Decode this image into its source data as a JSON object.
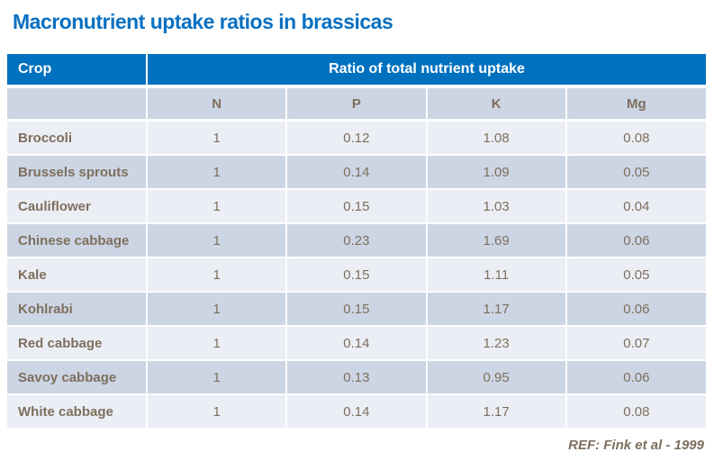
{
  "title": "Macronutrient uptake ratios in brassicas",
  "table": {
    "crop_header": "Crop",
    "span_header": "Ratio of total nutrient uptake",
    "columns": [
      "N",
      "P",
      "K",
      "Mg"
    ],
    "rows": [
      {
        "crop": "Broccoli",
        "values": [
          "1",
          "0.12",
          "1.08",
          "0.08"
        ]
      },
      {
        "crop": "Brussels sprouts",
        "values": [
          "1",
          "0.14",
          "1.09",
          "0.05"
        ]
      },
      {
        "crop": "Cauliflower",
        "values": [
          "1",
          "0.15",
          "1.03",
          "0.04"
        ]
      },
      {
        "crop": "Chinese cabbage",
        "values": [
          "1",
          "0.23",
          "1.69",
          "0.06"
        ]
      },
      {
        "crop": "Kale",
        "values": [
          "1",
          "0.15",
          "1.11",
          "0.05"
        ]
      },
      {
        "crop": "Kohlrabi",
        "values": [
          "1",
          "0.15",
          "1.17",
          "0.06"
        ]
      },
      {
        "crop": "Red cabbage",
        "values": [
          "1",
          "0.14",
          "1.23",
          "0.07"
        ]
      },
      {
        "crop": "Savoy cabbage",
        "values": [
          "1",
          "0.13",
          "0.95",
          "0.06"
        ]
      },
      {
        "crop": "White cabbage",
        "values": [
          "1",
          "0.14",
          "1.17",
          "0.08"
        ]
      }
    ]
  },
  "footer": {
    "reference": "REF: Fink et al - 1999"
  },
  "colors": {
    "header_bg": "#0071bf",
    "header_text": "#ffffff",
    "band_dark": "#ccd5e4",
    "band_light": "#ebeef5",
    "title_text": "#0a70c0",
    "body_text": "#7e6f5d"
  },
  "chart_data": {
    "type": "table",
    "title": "Macronutrient uptake ratios in brassicas",
    "columns": [
      "Crop",
      "N",
      "P",
      "K",
      "Mg"
    ],
    "rows": [
      [
        "Broccoli",
        1,
        0.12,
        1.08,
        0.08
      ],
      [
        "Brussels sprouts",
        1,
        0.14,
        1.09,
        0.05
      ],
      [
        "Cauliflower",
        1,
        0.15,
        1.03,
        0.04
      ],
      [
        "Chinese cabbage",
        1,
        0.23,
        1.69,
        0.06
      ],
      [
        "Kale",
        1,
        0.15,
        1.11,
        0.05
      ],
      [
        "Kohlrabi",
        1,
        0.15,
        1.17,
        0.06
      ],
      [
        "Red cabbage",
        1,
        0.14,
        1.23,
        0.07
      ],
      [
        "Savoy cabbage",
        1,
        0.13,
        0.95,
        0.06
      ],
      [
        "White cabbage",
        1,
        0.14,
        1.17,
        0.08
      ]
    ],
    "annotations": [
      "REF: Fink et al - 1999"
    ]
  }
}
